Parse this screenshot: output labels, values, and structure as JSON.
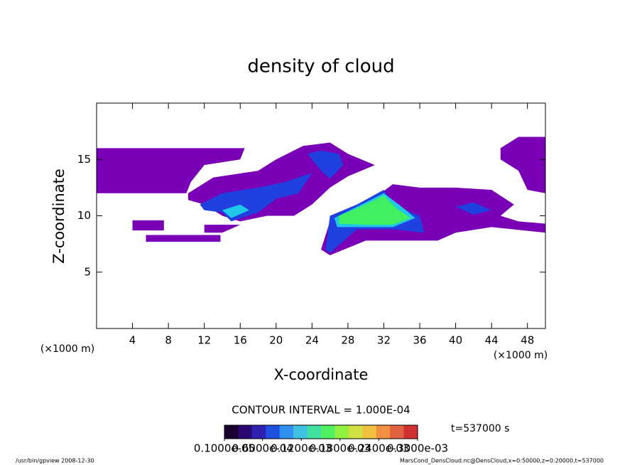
{
  "chart_data": {
    "type": "contour",
    "title": "density of cloud",
    "x_label": "X-coordinate",
    "y_label": "Z-coordinate",
    "x_unit": "(×1000 m)",
    "y_unit": "(×1000 m)",
    "xlim": [
      0,
      50
    ],
    "ylim": [
      0,
      20
    ],
    "xticks": [
      4,
      8,
      12,
      16,
      20,
      24,
      28,
      32,
      36,
      40,
      44,
      48
    ],
    "yticks": [
      5,
      10,
      15
    ],
    "contour_interval": "CONTOUR INTERVAL = 1.000E-04",
    "time_label": "t=537000 s",
    "colorbar_lim": [
      1e-06,
      0.0003
    ],
    "colorbar_ticks": [
      {
        "value": 1e-06,
        "label": "0.1000e-05"
      },
      {
        "value": 6e-05,
        "label": "0.6000e-04"
      },
      {
        "value": 0.00012,
        "label": "0.1200e-03"
      },
      {
        "value": 0.00018,
        "label": "0.1800e-03"
      },
      {
        "value": 0.00024,
        "label": "0.2400e-03"
      },
      {
        "value": 0.0003,
        "label": "0.3000e-03"
      }
    ],
    "colormap": [
      "#1a0030",
      "#2a0a70",
      "#3020b0",
      "#2050e0",
      "#3090f0",
      "#40c0e0",
      "#40e0a0",
      "#50f060",
      "#90f040",
      "#d0e040",
      "#f0c040",
      "#f09040",
      "#e06040",
      "#d03030"
    ],
    "regions": [
      {
        "level": 1e-06,
        "color": "#7a00b8",
        "x": [
          0,
          16.5,
          16,
          12,
          10.5,
          10,
          0
        ],
        "z": [
          16,
          16,
          15,
          14.5,
          13,
          12,
          12
        ]
      },
      {
        "level": 1e-06,
        "color": "#7a00b8",
        "x": [
          10.2,
          13,
          18,
          20,
          23,
          26,
          28,
          31,
          28,
          26,
          24,
          22,
          19,
          16,
          14,
          12,
          10.2
        ],
        "z": [
          12,
          13.4,
          14,
          15,
          16.2,
          16.5,
          15.5,
          14.5,
          13.5,
          12.5,
          11,
          10,
          10,
          9.5,
          10,
          11,
          11.4
        ]
      },
      {
        "level": 1e-06,
        "color": "#7a00b8",
        "x": [
          25,
          26,
          30,
          33,
          36,
          40,
          44,
          46.5,
          45,
          47,
          50,
          50,
          44,
          40,
          38,
          30,
          26
        ],
        "z": [
          7,
          9.5,
          11,
          12.8,
          12.5,
          12.5,
          12.3,
          11,
          10,
          9.5,
          9.3,
          8.5,
          9,
          8.5,
          7.8,
          7.8,
          6.5
        ]
      },
      {
        "level": 1e-06,
        "color": "#7a00b8",
        "x": [
          45,
          47,
          50,
          50,
          48,
          47,
          45
        ],
        "z": [
          16,
          17,
          17,
          12,
          12.3,
          14,
          15
        ]
      },
      {
        "level": 1e-06,
        "color": "#7a00b8",
        "x": [
          4,
          7.5,
          7.5,
          4
        ],
        "z": [
          9.6,
          9.6,
          8.7,
          8.7
        ]
      },
      {
        "level": 1e-06,
        "color": "#7a00b8",
        "x": [
          5.5,
          13.8,
          13.8,
          5.5
        ],
        "z": [
          8.3,
          8.3,
          7.7,
          7.7
        ]
      },
      {
        "level": 1e-06,
        "color": "#7a00b8",
        "x": [
          12,
          14,
          16,
          12
        ],
        "z": [
          8.5,
          8.5,
          9.2,
          9.2
        ]
      },
      {
        "level": 6e-05,
        "color": "#2040e0",
        "x": [
          11.5,
          14,
          18,
          21,
          24,
          22.5,
          20,
          18,
          15,
          14,
          12
        ],
        "z": [
          11,
          12,
          12.5,
          13,
          13.8,
          12,
          11.5,
          10.3,
          9.5,
          10.3,
          10.5
        ]
      },
      {
        "level": 6e-05,
        "color": "#2040e0",
        "x": [
          23.5,
          25,
          27,
          27.5,
          26,
          25
        ],
        "z": [
          15.5,
          15.8,
          15.5,
          14.5,
          13.3,
          14
        ]
      },
      {
        "level": 6e-05,
        "color": "#2040e0",
        "x": [
          25.5,
          26,
          29,
          32,
          33,
          36,
          36.5,
          33,
          29,
          26
        ],
        "z": [
          7,
          10,
          11,
          12.3,
          11,
          10,
          8.5,
          8.8,
          8.8,
          6.7
        ]
      },
      {
        "level": 6e-05,
        "color": "#2040e0",
        "x": [
          40,
          42,
          44,
          42
        ],
        "z": [
          10.8,
          11.2,
          10.5,
          10.1
        ]
      },
      {
        "level": 0.00012,
        "color": "#20c8e8",
        "x": [
          14,
          16,
          17,
          15
        ],
        "z": [
          10.5,
          11,
          10.5,
          9.8
        ]
      },
      {
        "level": 0.00012,
        "color": "#20c8e8",
        "x": [
          26.5,
          30,
          32,
          34,
          35.5,
          33,
          30,
          26.8
        ],
        "z": [
          9.8,
          11.2,
          12,
          10.8,
          9.8,
          9,
          9,
          9
        ]
      },
      {
        "level": 0.00018,
        "color": "#40f060",
        "x": [
          27,
          30,
          32,
          33.5,
          35,
          33,
          30,
          27
        ],
        "z": [
          10,
          11,
          11.8,
          10.6,
          9.8,
          9.2,
          9.2,
          9.3
        ]
      }
    ],
    "footer_left": "/usr/bin/gpview  2008-12-30",
    "footer_right": "MarsCond_DensCloud.nc@DensCloud,x=0:50000,z=0:20000,t=537000"
  }
}
